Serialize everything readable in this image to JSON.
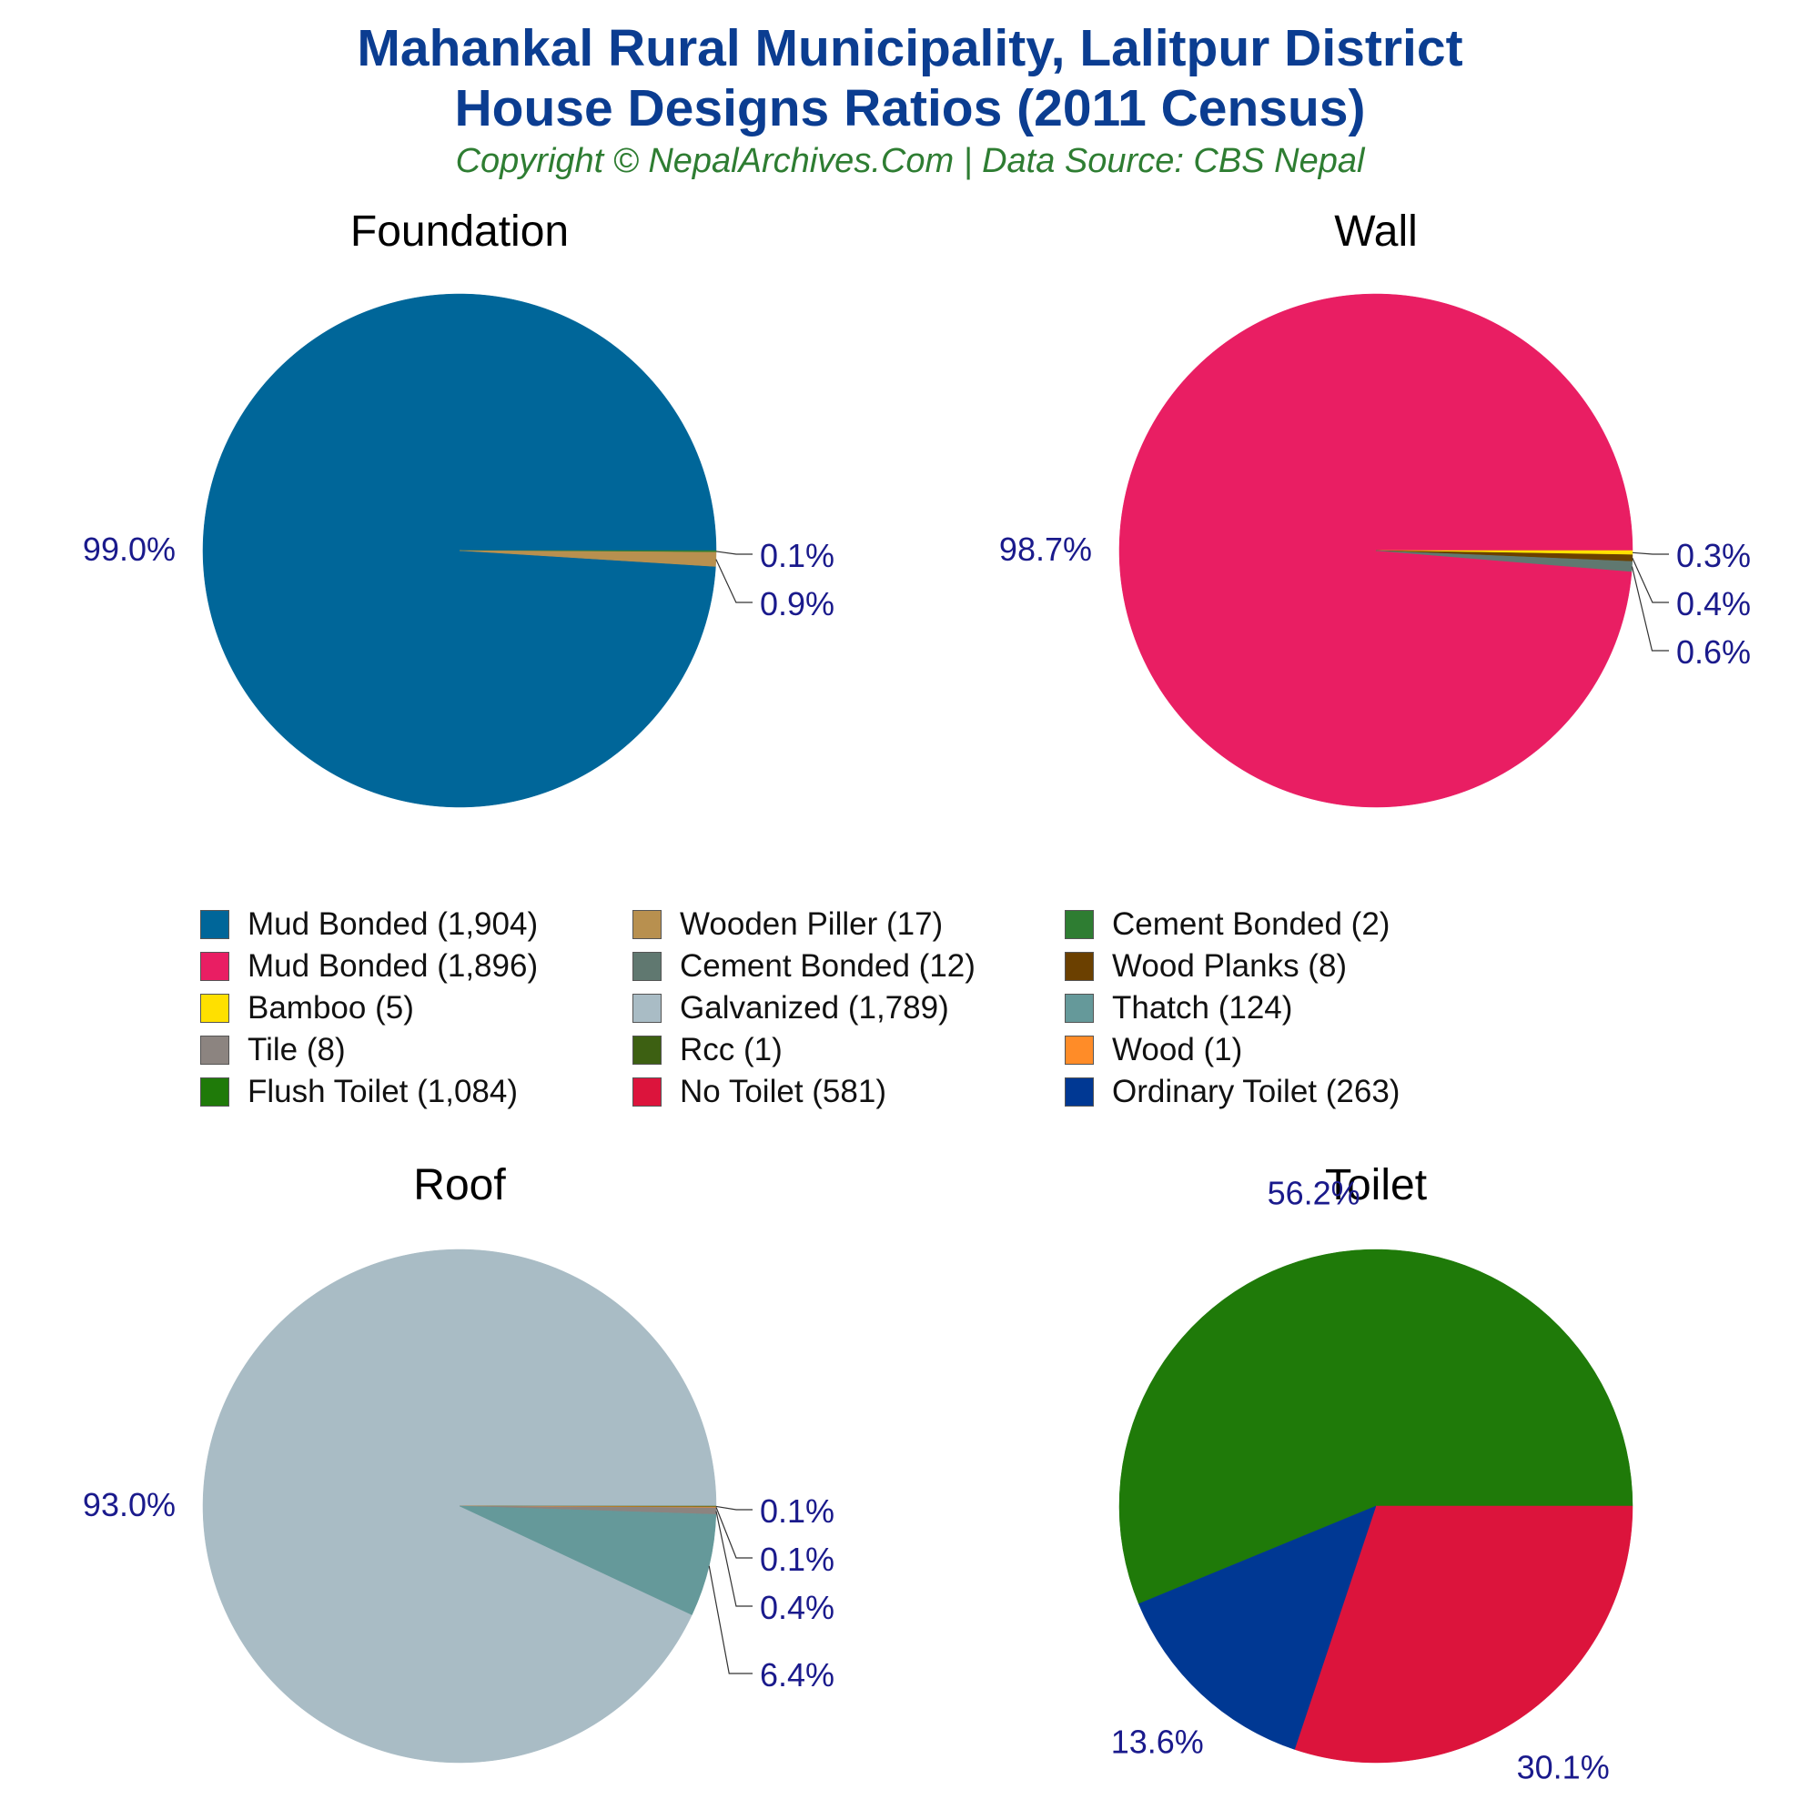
{
  "header": {
    "title_line1": "Mahankal Rural Municipality, Lalitpur District",
    "title_line2": "House Designs Ratios (2011 Census)",
    "subtitle": "Copyright © NepalArchives.Com | Data Source: CBS Nepal"
  },
  "colors": {
    "title": "#0b3d91",
    "subtitle": "#2e7d32",
    "label": "#1a1a8c"
  },
  "legend": [
    {
      "label": "Mud Bonded (1,904)",
      "color": "#006699"
    },
    {
      "label": "Wooden Piller (17)",
      "color": "#b8904f"
    },
    {
      "label": "Cement Bonded (2)",
      "color": "#2e7d32"
    },
    {
      "label": "Mud Bonded (1,896)",
      "color": "#e91e63"
    },
    {
      "label": "Cement Bonded (12)",
      "color": "#607870"
    },
    {
      "label": "Wood Planks (8)",
      "color": "#6b4000"
    },
    {
      "label": "Bamboo (5)",
      "color": "#ffe000"
    },
    {
      "label": "Galvanized (1,789)",
      "color": "#a9bcc5"
    },
    {
      "label": "Thatch (124)",
      "color": "#65999a"
    },
    {
      "label": "Tile (8)",
      "color": "#8c8480"
    },
    {
      "label": "Rcc (1)",
      "color": "#3d6012"
    },
    {
      "label": "Wood (1)",
      "color": "#ff8c28"
    },
    {
      "label": "Flush Toilet (1,084)",
      "color": "#1f7a09"
    },
    {
      "label": "No Toilet (581)",
      "color": "#dc143c"
    },
    {
      "label": "Ordinary Toilet (263)",
      "color": "#003893"
    }
  ],
  "chart_data": [
    {
      "type": "pie",
      "title": "Foundation",
      "slices": [
        {
          "name": "Mud Bonded",
          "value": 1904,
          "label": "99.0%",
          "color": "#006699"
        },
        {
          "name": "Cement Bonded",
          "value": 2,
          "label": "0.1%",
          "color": "#2e7d32"
        },
        {
          "name": "Wooden Piller",
          "value": 17,
          "label": "0.9%",
          "color": "#b8904f"
        }
      ]
    },
    {
      "type": "pie",
      "title": "Wall",
      "slices": [
        {
          "name": "Mud Bonded",
          "value": 1896,
          "label": "98.7%",
          "color": "#e91e63"
        },
        {
          "name": "Bamboo",
          "value": 5,
          "label": "0.3%",
          "color": "#ffe000"
        },
        {
          "name": "Wood Planks",
          "value": 8,
          "label": "0.4%",
          "color": "#6b4000"
        },
        {
          "name": "Cement Bonded",
          "value": 12,
          "label": "0.6%",
          "color": "#607870"
        }
      ]
    },
    {
      "type": "pie",
      "title": "Roof",
      "slices": [
        {
          "name": "Galvanized",
          "value": 1789,
          "label": "93.0%",
          "color": "#a9bcc5"
        },
        {
          "name": "Rcc",
          "value": 1,
          "label": "0.1%",
          "color": "#3d6012"
        },
        {
          "name": "Wood",
          "value": 1,
          "label": "0.1%",
          "color": "#ff8c28"
        },
        {
          "name": "Tile",
          "value": 8,
          "label": "0.4%",
          "color": "#8c8480"
        },
        {
          "name": "Thatch",
          "value": 124,
          "label": "6.4%",
          "color": "#65999a"
        }
      ]
    },
    {
      "type": "pie",
      "title": "Toilet",
      "slices": [
        {
          "name": "Flush Toilet",
          "value": 1084,
          "label": "56.2%",
          "color": "#1f7a09"
        },
        {
          "name": "No Toilet",
          "value": 581,
          "label": "30.1%",
          "color": "#dc143c"
        },
        {
          "name": "Ordinary Toilet",
          "value": 263,
          "label": "13.6%",
          "color": "#003893"
        }
      ]
    }
  ]
}
